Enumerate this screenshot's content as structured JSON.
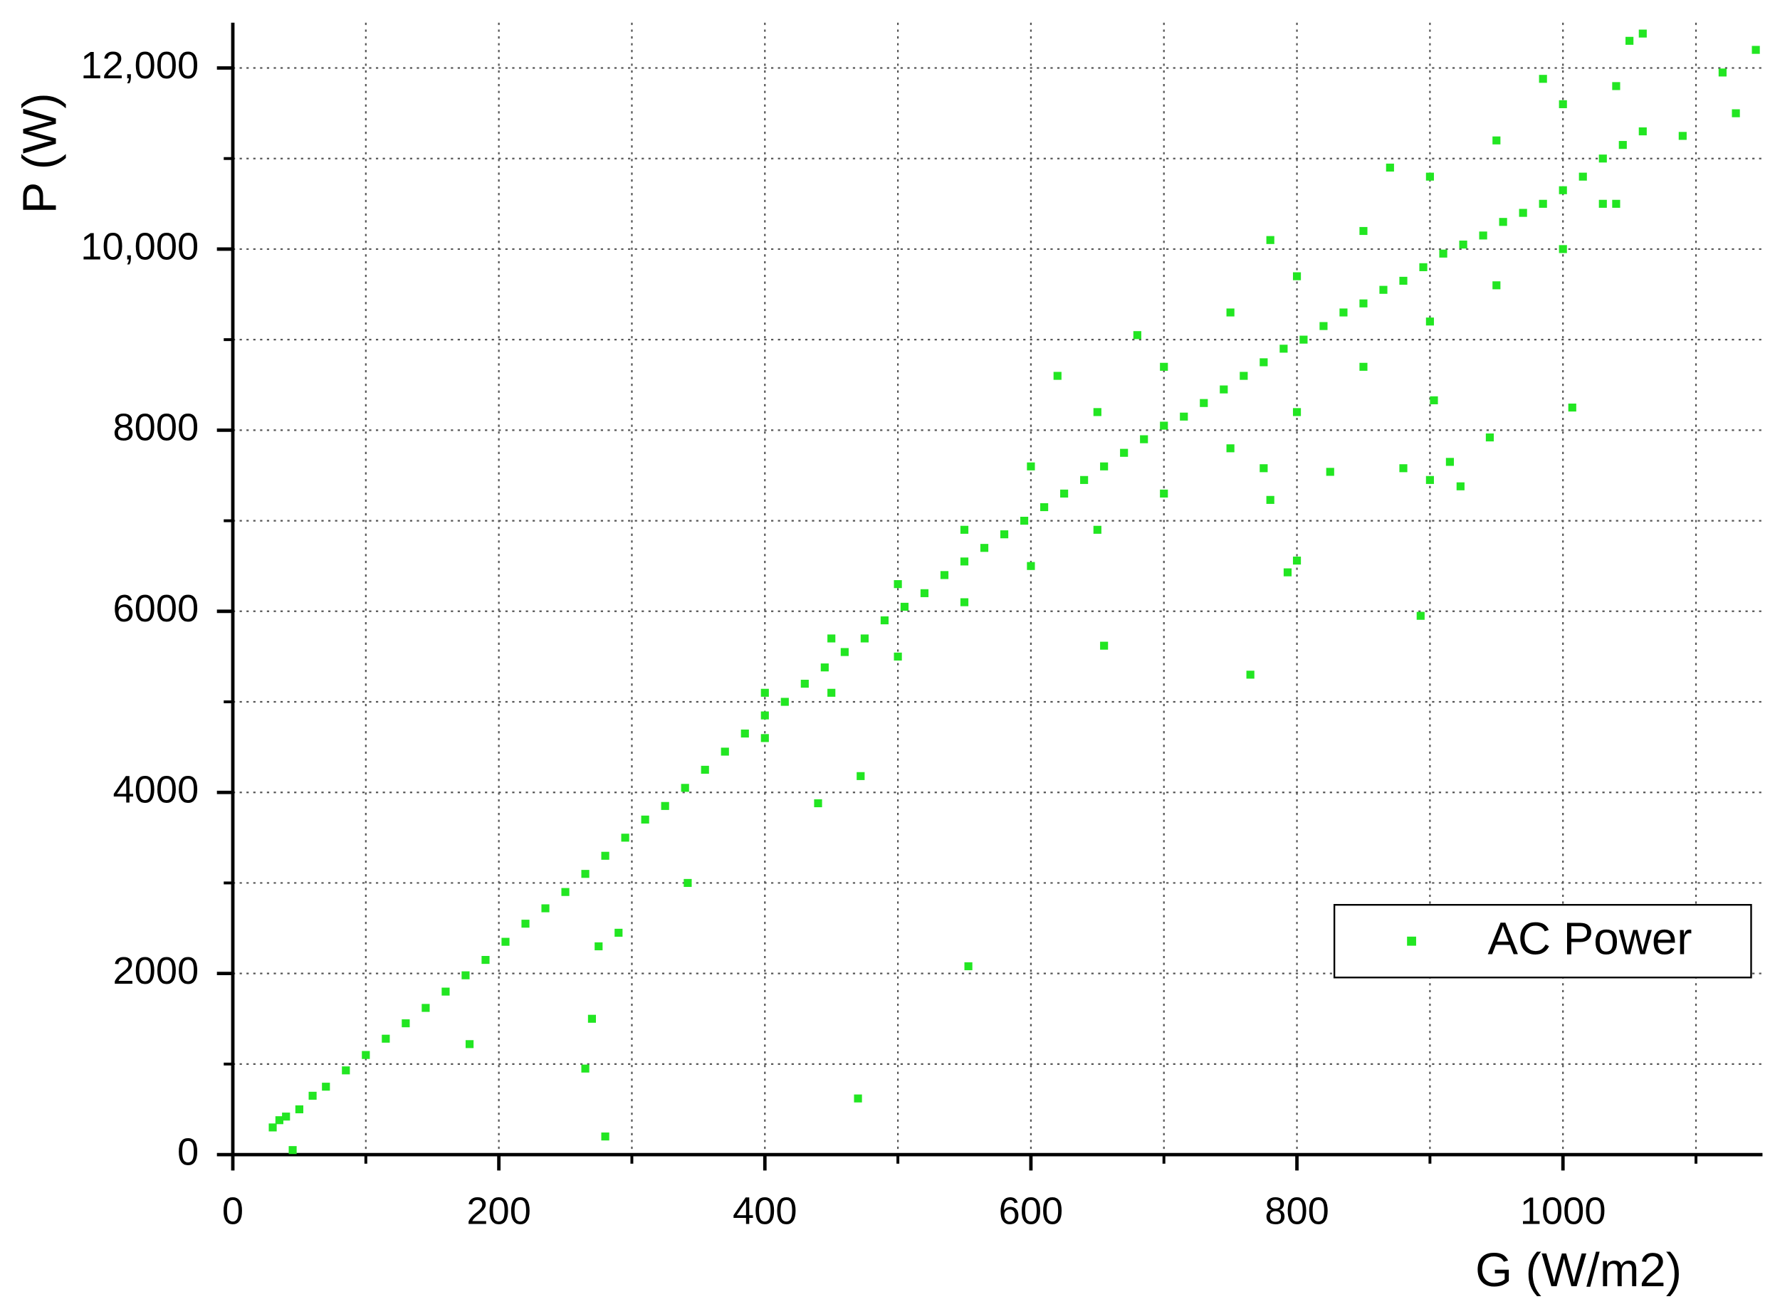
{
  "chart_data": {
    "type": "scatter",
    "x_label": "G (W/m2)",
    "y_label": "P (W)",
    "xlim": [
      0,
      1150
    ],
    "ylim": [
      0,
      12500
    ],
    "xticks": [
      0,
      200,
      400,
      600,
      800,
      1000
    ],
    "minor_xticks": [
      100,
      300,
      500,
      700,
      900,
      1100
    ],
    "yticks": [
      0,
      2000,
      4000,
      6000,
      8000,
      {
        "value": 10000,
        "label": "10,000"
      },
      {
        "value": 12000,
        "label": "12,000"
      }
    ],
    "minor_yticks": [
      1000,
      3000,
      5000,
      7000,
      9000,
      11000
    ],
    "grid": true,
    "legend_position": "lower right",
    "series": [
      {
        "name": "AC Power",
        "color": "#22e622",
        "x": [
          30,
          35,
          40,
          50,
          60,
          70,
          85,
          100,
          115,
          130,
          145,
          160,
          175,
          190,
          205,
          220,
          235,
          250,
          265,
          280,
          295,
          310,
          325,
          340,
          355,
          370,
          385,
          400,
          415,
          430,
          445,
          460,
          475,
          490,
          505,
          520,
          535,
          550,
          565,
          580,
          595,
          610,
          625,
          640,
          655,
          670,
          685,
          700,
          715,
          730,
          745,
          760,
          775,
          790,
          805,
          820,
          835,
          850,
          865,
          880,
          895,
          910,
          925,
          940,
          955,
          970,
          985,
          1000,
          1015,
          1030,
          1045,
          1060,
          400,
          450,
          500,
          550,
          600,
          650,
          700,
          750,
          800,
          850,
          900,
          950,
          1000,
          1040,
          620,
          680,
          780,
          870,
          400,
          450,
          500,
          550,
          600,
          650,
          700,
          750,
          800,
          850,
          900,
          950,
          1000,
          1040,
          1030,
          45,
          280,
          470,
          265,
          270,
          178,
          275,
          290,
          553,
          342,
          440,
          472,
          655,
          765,
          893,
          800,
          793,
          780,
          775,
          825,
          880,
          900,
          915,
          923,
          945,
          903,
          1007,
          1145,
          1120,
          1130,
          1090,
          1060,
          1050,
          985
        ],
        "values": [
          300,
          380,
          420,
          500,
          650,
          750,
          930,
          1100,
          1280,
          1450,
          1620,
          1800,
          1980,
          2150,
          2350,
          2550,
          2720,
          2900,
          3100,
          3300,
          3500,
          3700,
          3850,
          4050,
          4250,
          4450,
          4650,
          4850,
          5000,
          5200,
          5380,
          5550,
          5700,
          5900,
          6050,
          6200,
          6400,
          6550,
          6700,
          6850,
          7000,
          7150,
          7300,
          7450,
          7600,
          7750,
          7900,
          8050,
          8150,
          8300,
          8450,
          8600,
          8750,
          8900,
          9000,
          9150,
          9300,
          9400,
          9550,
          9650,
          9800,
          9950,
          10050,
          10150,
          10300,
          10400,
          10500,
          10650,
          10800,
          11000,
          11150,
          11300,
          5100,
          5700,
          6300,
          6900,
          7600,
          8200,
          8700,
          9300,
          9700,
          10200,
          10800,
          11200,
          11600,
          11800,
          8600,
          9050,
          10100,
          10900,
          4600,
          5100,
          5500,
          6100,
          6500,
          6900,
          7300,
          7800,
          8200,
          8700,
          9200,
          9600,
          10000,
          10500,
          10500,
          50,
          200,
          620,
          950,
          1500,
          1220,
          2300,
          2450,
          2080,
          3000,
          3880,
          4180,
          5620,
          5300,
          5950,
          6560,
          6430,
          7230,
          7580,
          7540,
          7580,
          7450,
          7650,
          7380,
          7920,
          8330,
          8250,
          12200,
          11950,
          11500,
          11250,
          12380,
          12300,
          11880
        ]
      }
    ]
  }
}
